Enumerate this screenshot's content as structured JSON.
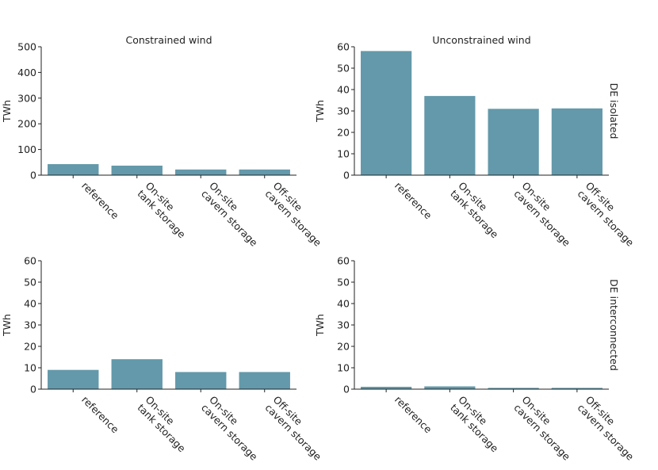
{
  "chart_data": [
    {
      "type": "bar",
      "title": "Constrained wind",
      "row_label": "",
      "xlabel": "",
      "ylabel": "TWh",
      "categories": [
        "reference",
        "On-site\ntank storage",
        "On-site\ncavern storage",
        "Off-site\ncavern storage"
      ],
      "values": [
        43,
        37,
        22,
        22
      ],
      "ylim": [
        0,
        500
      ],
      "yticks": [
        0,
        100,
        200,
        300,
        400,
        500
      ],
      "bar_color": "#6399aa",
      "grid": false
    },
    {
      "type": "bar",
      "title": "Unconstrained wind",
      "row_label": "DE isolated",
      "xlabel": "",
      "ylabel": "TWh",
      "categories": [
        "reference",
        "On-site\ntank storage",
        "On-site\ncavern storage",
        "Off-site\ncavern storage"
      ],
      "values": [
        58,
        37,
        31,
        31.2
      ],
      "ylim": [
        0,
        60
      ],
      "yticks": [
        0,
        10,
        20,
        30,
        40,
        50,
        60
      ],
      "bar_color": "#6399aa",
      "grid": false
    },
    {
      "type": "bar",
      "title": "",
      "row_label": "",
      "xlabel": "",
      "ylabel": "TWh",
      "categories": [
        "reference",
        "On-site\ntank storage",
        "On-site\ncavern storage",
        "Off-site\ncavern storage"
      ],
      "values": [
        9,
        14,
        8,
        8
      ],
      "ylim": [
        0,
        60
      ],
      "yticks": [
        0,
        10,
        20,
        30,
        40,
        50,
        60
      ],
      "bar_color": "#6399aa",
      "grid": false
    },
    {
      "type": "bar",
      "title": "",
      "row_label": "DE interconnected",
      "xlabel": "",
      "ylabel": "TWh",
      "categories": [
        "reference",
        "On-site\ntank storage",
        "On-site\ncavern storage",
        "Off-site\ncavern storage"
      ],
      "values": [
        1.1,
        1.3,
        0.6,
        0.6
      ],
      "ylim": [
        0,
        60
      ],
      "yticks": [
        0,
        10,
        20,
        30,
        40,
        50,
        60
      ],
      "bar_color": "#6399aa",
      "grid": false
    }
  ]
}
